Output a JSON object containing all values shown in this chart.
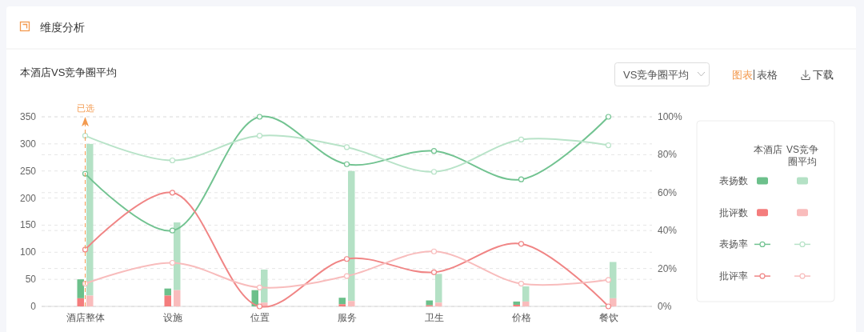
{
  "chart_data": {
    "type": "bar",
    "title": "维度分析",
    "subtitle": "本酒店VS竞争圈平均",
    "annotations": [
      "VS竞争圈平均",
      "图表",
      "表格",
      "下载",
      "本酒店",
      "VS竞争圈平均"
    ],
    "categories": [
      "酒店整体",
      "设施",
      "位置",
      "服务",
      "卫生",
      "价格",
      "餐饮"
    ],
    "series": [
      {
        "name": "表扬数",
        "color": "#6cc08b",
        "values": [
          35,
          13,
          30,
          12,
          9,
          6,
          1
        ],
        "base": [
          15,
          20,
          0,
          4,
          2,
          3,
          0
        ]
      },
      {
        "color": "#b4e1c5",
        "values": [
          280,
          125,
          61,
          240,
          53,
          28,
          67
        ],
        "base": [
          20,
          30,
          7,
          10,
          7,
          9,
          15
        ]
      },
      {
        "name": "批评数",
        "color": "#f47d7d",
        "values": [
          15,
          20,
          0,
          4,
          2,
          3,
          0
        ]
      },
      {
        "color": "#f9bcbc",
        "values": [
          20,
          30,
          7,
          10,
          7,
          9,
          15
        ]
      },
      {
        "name": "表扬率",
        "type": "line",
        "axis": "y2",
        "color": "#72c391",
        "values": [
          70,
          40,
          100,
          75,
          82,
          67,
          100
        ]
      },
      {
        "type": "line",
        "axis": "y2",
        "color": "#b8e3c8",
        "values": [
          90,
          77,
          90,
          84,
          71,
          88,
          85
        ]
      },
      {
        "name": "批评率",
        "type": "line",
        "axis": "y2",
        "color": "#f08585",
        "values": [
          30,
          60,
          0,
          25,
          18,
          33,
          0
        ]
      },
      {
        "type": "line",
        "axis": "y2",
        "color": "#f8bcbc",
        "values": [
          12,
          23,
          10,
          16,
          29,
          12,
          14
        ]
      }
    ],
    "ylim": [
      0,
      350
    ],
    "yticks": [
      0,
      50,
      100,
      150,
      200,
      250,
      300,
      350
    ],
    "y2lim": [
      0,
      100
    ],
    "y2ticks": [
      {
        "value": 0,
        "label": "0%"
      },
      {
        "value": 20,
        "label": "20%"
      },
      {
        "value": 40,
        "label": "40%"
      },
      {
        "value": 60,
        "label": "60%"
      },
      {
        "value": 80,
        "label": "80%"
      },
      {
        "value": 100,
        "label": "100%"
      }
    ],
    "ref_lines": [
      {
        "axis": "x",
        "value": "酒店整体",
        "label": "已选",
        "color": "#f39a4f",
        "line_style": "dashed"
      }
    ],
    "grid": true,
    "legend": "right",
    "marker": "circle",
    "line_style": "solid"
  }
}
